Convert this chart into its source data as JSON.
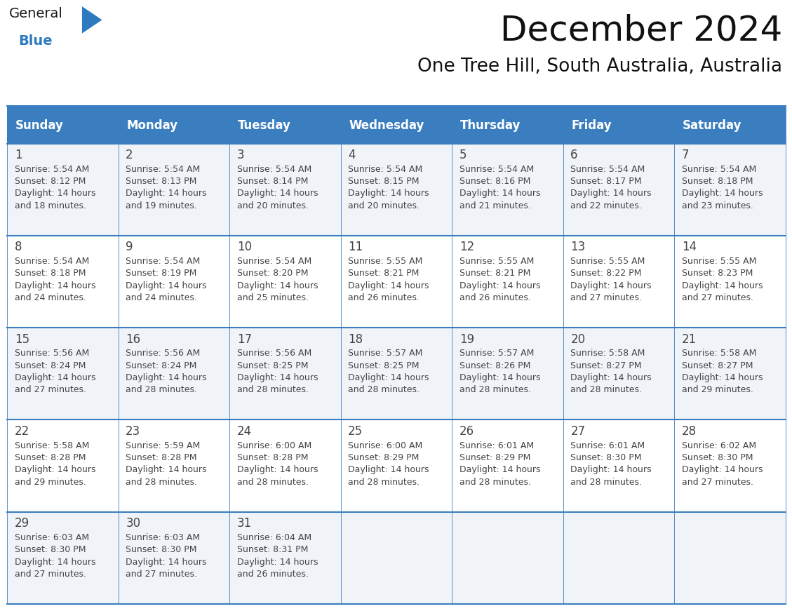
{
  "title": "December 2024",
  "subtitle": "One Tree Hill, South Australia, Australia",
  "days_of_week": [
    "Sunday",
    "Monday",
    "Tuesday",
    "Wednesday",
    "Thursday",
    "Friday",
    "Saturday"
  ],
  "header_bg": "#3a7ebf",
  "header_text": "#ffffff",
  "cell_bg_odd": "#f0f4f8",
  "cell_bg_even": "#ffffff",
  "row_line_color": "#3a7ebf",
  "text_color": "#444444",
  "calendar_data": [
    [
      {
        "day": 1,
        "sunrise": "5:54 AM",
        "sunset": "8:12 PM",
        "dl1": "Daylight: 14 hours",
        "dl2": "and 18 minutes."
      },
      {
        "day": 2,
        "sunrise": "5:54 AM",
        "sunset": "8:13 PM",
        "dl1": "Daylight: 14 hours",
        "dl2": "and 19 minutes."
      },
      {
        "day": 3,
        "sunrise": "5:54 AM",
        "sunset": "8:14 PM",
        "dl1": "Daylight: 14 hours",
        "dl2": "and 20 minutes."
      },
      {
        "day": 4,
        "sunrise": "5:54 AM",
        "sunset": "8:15 PM",
        "dl1": "Daylight: 14 hours",
        "dl2": "and 20 minutes."
      },
      {
        "day": 5,
        "sunrise": "5:54 AM",
        "sunset": "8:16 PM",
        "dl1": "Daylight: 14 hours",
        "dl2": "and 21 minutes."
      },
      {
        "day": 6,
        "sunrise": "5:54 AM",
        "sunset": "8:17 PM",
        "dl1": "Daylight: 14 hours",
        "dl2": "and 22 minutes."
      },
      {
        "day": 7,
        "sunrise": "5:54 AM",
        "sunset": "8:18 PM",
        "dl1": "Daylight: 14 hours",
        "dl2": "and 23 minutes."
      }
    ],
    [
      {
        "day": 8,
        "sunrise": "5:54 AM",
        "sunset": "8:18 PM",
        "dl1": "Daylight: 14 hours",
        "dl2": "and 24 minutes."
      },
      {
        "day": 9,
        "sunrise": "5:54 AM",
        "sunset": "8:19 PM",
        "dl1": "Daylight: 14 hours",
        "dl2": "and 24 minutes."
      },
      {
        "day": 10,
        "sunrise": "5:54 AM",
        "sunset": "8:20 PM",
        "dl1": "Daylight: 14 hours",
        "dl2": "and 25 minutes."
      },
      {
        "day": 11,
        "sunrise": "5:55 AM",
        "sunset": "8:21 PM",
        "dl1": "Daylight: 14 hours",
        "dl2": "and 26 minutes."
      },
      {
        "day": 12,
        "sunrise": "5:55 AM",
        "sunset": "8:21 PM",
        "dl1": "Daylight: 14 hours",
        "dl2": "and 26 minutes."
      },
      {
        "day": 13,
        "sunrise": "5:55 AM",
        "sunset": "8:22 PM",
        "dl1": "Daylight: 14 hours",
        "dl2": "and 27 minutes."
      },
      {
        "day": 14,
        "sunrise": "5:55 AM",
        "sunset": "8:23 PM",
        "dl1": "Daylight: 14 hours",
        "dl2": "and 27 minutes."
      }
    ],
    [
      {
        "day": 15,
        "sunrise": "5:56 AM",
        "sunset": "8:24 PM",
        "dl1": "Daylight: 14 hours",
        "dl2": "and 27 minutes."
      },
      {
        "day": 16,
        "sunrise": "5:56 AM",
        "sunset": "8:24 PM",
        "dl1": "Daylight: 14 hours",
        "dl2": "and 28 minutes."
      },
      {
        "day": 17,
        "sunrise": "5:56 AM",
        "sunset": "8:25 PM",
        "dl1": "Daylight: 14 hours",
        "dl2": "and 28 minutes."
      },
      {
        "day": 18,
        "sunrise": "5:57 AM",
        "sunset": "8:25 PM",
        "dl1": "Daylight: 14 hours",
        "dl2": "and 28 minutes."
      },
      {
        "day": 19,
        "sunrise": "5:57 AM",
        "sunset": "8:26 PM",
        "dl1": "Daylight: 14 hours",
        "dl2": "and 28 minutes."
      },
      {
        "day": 20,
        "sunrise": "5:58 AM",
        "sunset": "8:27 PM",
        "dl1": "Daylight: 14 hours",
        "dl2": "and 28 minutes."
      },
      {
        "day": 21,
        "sunrise": "5:58 AM",
        "sunset": "8:27 PM",
        "dl1": "Daylight: 14 hours",
        "dl2": "and 29 minutes."
      }
    ],
    [
      {
        "day": 22,
        "sunrise": "5:58 AM",
        "sunset": "8:28 PM",
        "dl1": "Daylight: 14 hours",
        "dl2": "and 29 minutes."
      },
      {
        "day": 23,
        "sunrise": "5:59 AM",
        "sunset": "8:28 PM",
        "dl1": "Daylight: 14 hours",
        "dl2": "and 28 minutes."
      },
      {
        "day": 24,
        "sunrise": "6:00 AM",
        "sunset": "8:28 PM",
        "dl1": "Daylight: 14 hours",
        "dl2": "and 28 minutes."
      },
      {
        "day": 25,
        "sunrise": "6:00 AM",
        "sunset": "8:29 PM",
        "dl1": "Daylight: 14 hours",
        "dl2": "and 28 minutes."
      },
      {
        "day": 26,
        "sunrise": "6:01 AM",
        "sunset": "8:29 PM",
        "dl1": "Daylight: 14 hours",
        "dl2": "and 28 minutes."
      },
      {
        "day": 27,
        "sunrise": "6:01 AM",
        "sunset": "8:30 PM",
        "dl1": "Daylight: 14 hours",
        "dl2": "and 28 minutes."
      },
      {
        "day": 28,
        "sunrise": "6:02 AM",
        "sunset": "8:30 PM",
        "dl1": "Daylight: 14 hours",
        "dl2": "and 27 minutes."
      }
    ],
    [
      {
        "day": 29,
        "sunrise": "6:03 AM",
        "sunset": "8:30 PM",
        "dl1": "Daylight: 14 hours",
        "dl2": "and 27 minutes."
      },
      {
        "day": 30,
        "sunrise": "6:03 AM",
        "sunset": "8:30 PM",
        "dl1": "Daylight: 14 hours",
        "dl2": "and 27 minutes."
      },
      {
        "day": 31,
        "sunrise": "6:04 AM",
        "sunset": "8:31 PM",
        "dl1": "Daylight: 14 hours",
        "dl2": "and 26 minutes."
      },
      null,
      null,
      null,
      null
    ]
  ],
  "logo_color_general": "#1a1a1a",
  "logo_color_blue": "#2e7abf",
  "logo_triangle_color": "#2e7abf",
  "title_fontsize": 36,
  "subtitle_fontsize": 19,
  "header_fontsize": 12,
  "day_num_fontsize": 12,
  "cell_fontsize": 9
}
